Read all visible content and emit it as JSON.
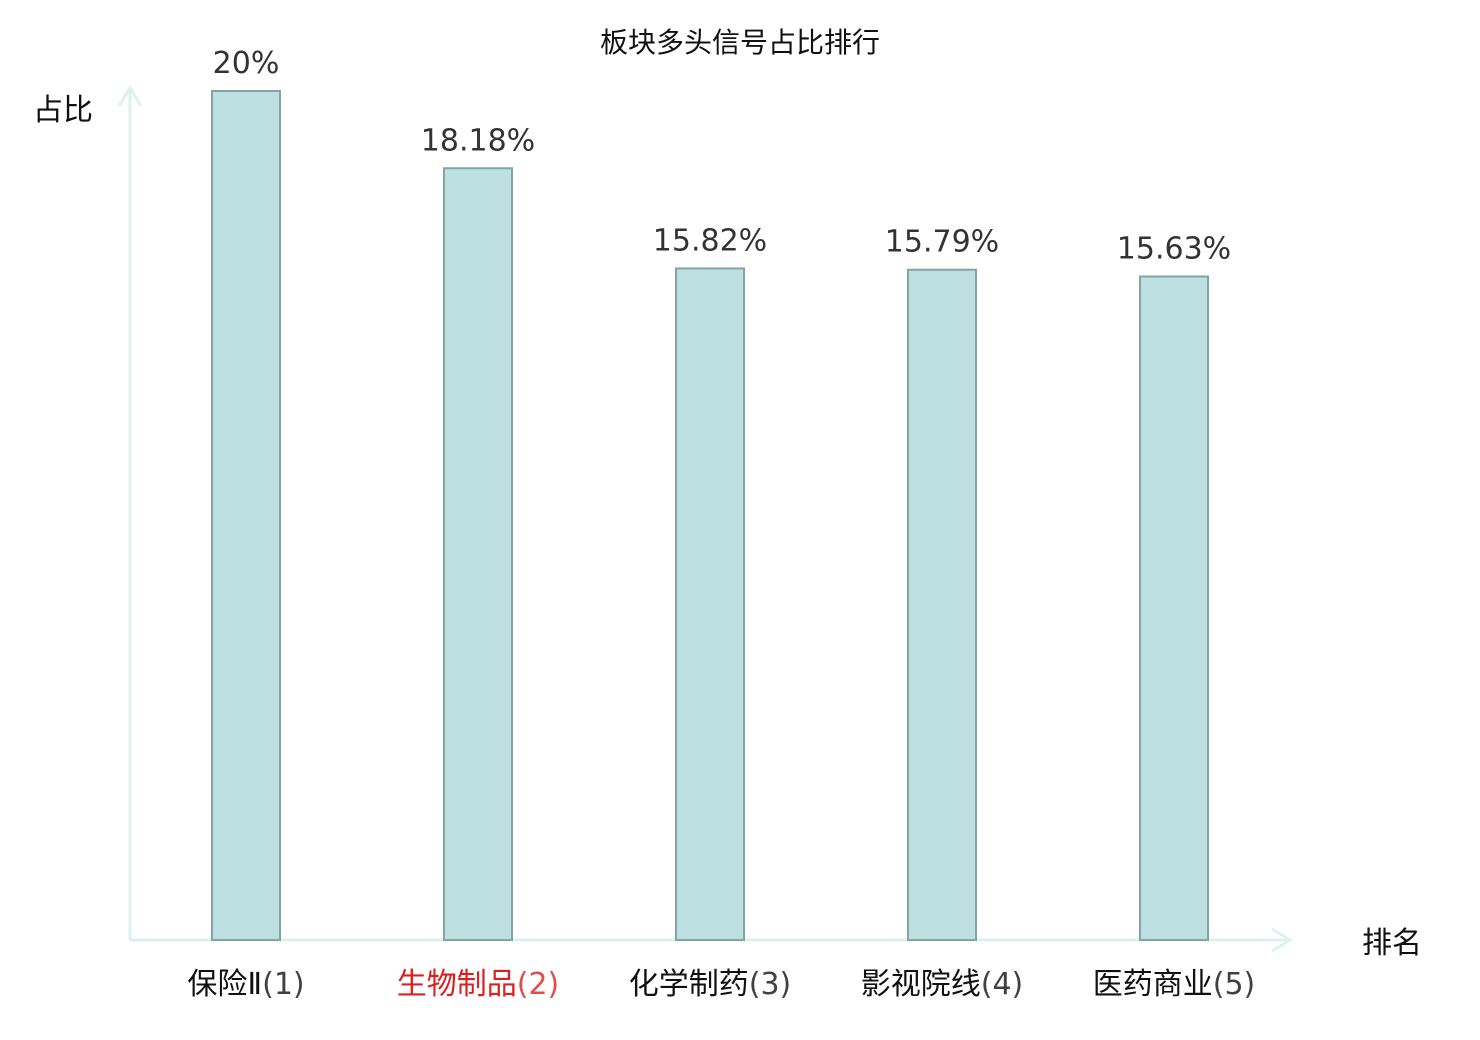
{
  "chart_data": {
    "type": "bar",
    "title": "板块多头信号占比排行",
    "ylabel": "占比",
    "xlabel": "排名",
    "categories": [
      {
        "name": "保险Ⅱ",
        "rank": "(1)",
        "highlight": false
      },
      {
        "name": "生物制品",
        "rank": "(2)",
        "highlight": true
      },
      {
        "name": "化学制药",
        "rank": "(3)",
        "highlight": false
      },
      {
        "name": "影视院线",
        "rank": "(4)",
        "highlight": false
      },
      {
        "name": "医药商业",
        "rank": "(5)",
        "highlight": false
      }
    ],
    "values": [
      20,
      18.18,
      15.82,
      15.79,
      15.63
    ],
    "value_labels": [
      "20%",
      "18.18%",
      "15.82%",
      "15.79%",
      "15.63%"
    ],
    "ylim": [
      0,
      20
    ],
    "grid": false,
    "legend": "none"
  },
  "colors": {
    "bar_fill": "#bde1e2",
    "bar_stroke": "#84a3a4",
    "axis": "#dff1ee",
    "highlight_text": "#dd1f1f",
    "normal_text": "#111111",
    "value_text": "#333333"
  }
}
